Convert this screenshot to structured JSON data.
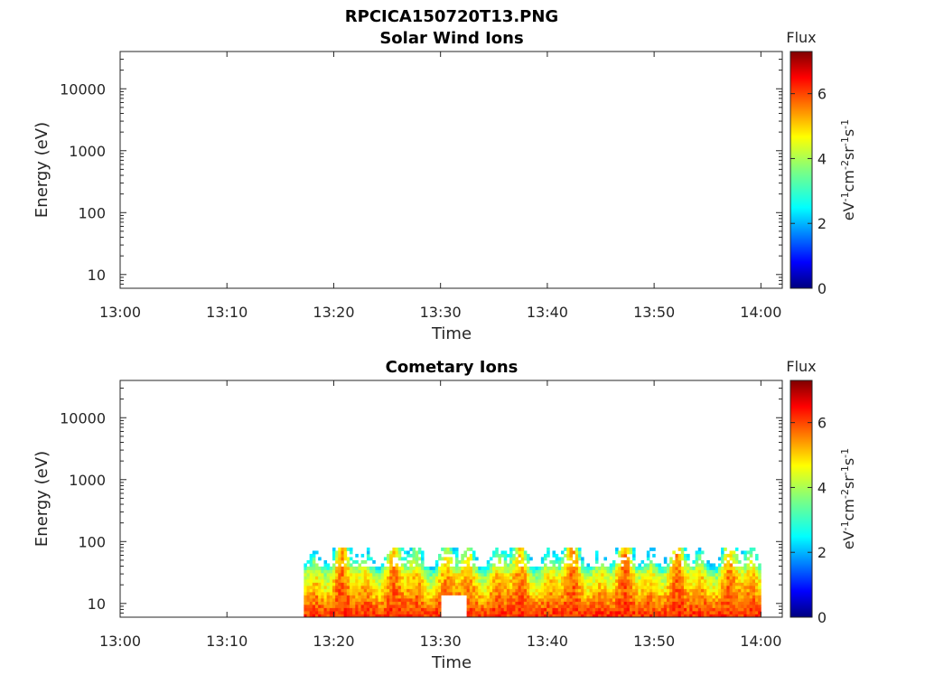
{
  "figure": {
    "title": "RPCICA150720T13.PNG"
  },
  "chart_data": [
    {
      "type": "heatmap",
      "title": "Solar Wind Ions",
      "xlabel": "Time",
      "ylabel": "Energy (eV)",
      "x_ticks": [
        "13:00",
        "13:10",
        "13:20",
        "13:30",
        "13:40",
        "13:50",
        "14:00"
      ],
      "xlim_minutes": [
        0,
        62
      ],
      "y_scale": "log",
      "y_ticks": [
        {
          "value": 10,
          "label": "10"
        },
        {
          "value": 100,
          "label": "100"
        },
        {
          "value": 1000,
          "label": "1000"
        },
        {
          "value": 10000,
          "label": "10000"
        }
      ],
      "ylim": [
        6,
        40000
      ],
      "colorbar": {
        "label": "Flux",
        "units": "eV-1cm-2sr-1s-1",
        "ticks": [
          "0",
          "2",
          "4",
          "6"
        ],
        "range": [
          0,
          7.3
        ],
        "colormap": "jet"
      },
      "data": []
    },
    {
      "type": "heatmap",
      "title": "Cometary Ions",
      "xlabel": "Time",
      "ylabel": "Energy (eV)",
      "x_ticks": [
        "13:00",
        "13:10",
        "13:20",
        "13:30",
        "13:40",
        "13:50",
        "14:00"
      ],
      "xlim_minutes": [
        0,
        62
      ],
      "y_scale": "log",
      "y_ticks": [
        {
          "value": 10,
          "label": "10"
        },
        {
          "value": 100,
          "label": "100"
        },
        {
          "value": 1000,
          "label": "1000"
        },
        {
          "value": 10000,
          "label": "10000"
        }
      ],
      "ylim": [
        6,
        40000
      ],
      "colorbar": {
        "label": "Flux",
        "units": "eV-1cm-2sr-1s-1",
        "ticks": [
          "0",
          "2",
          "4",
          "6"
        ],
        "range": [
          0,
          7.3
        ],
        "colormap": "jet"
      },
      "data_start_minute": 17.2,
      "data_end_minute": 60,
      "energy_band_eV": [
        6,
        80
      ],
      "peak_flux_approx": 6.5,
      "note_gap": "low-energy flux absent near 13:30-13:32"
    }
  ]
}
